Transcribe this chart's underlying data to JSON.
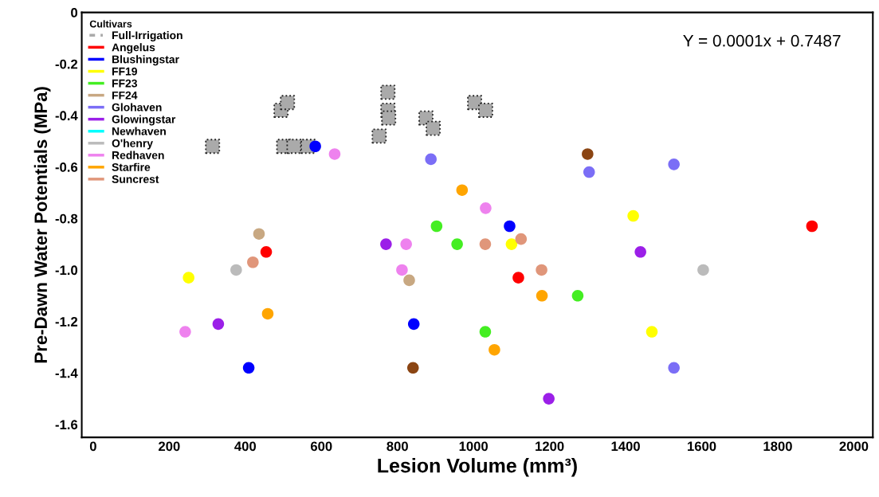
{
  "chart_data": {
    "type": "scatter",
    "xlabel": "Lesion Volume (mm³)",
    "ylabel": "Pre-Dawn Water Potentials (MPa)",
    "legend_title": "Cultivars",
    "xlim": [
      -30,
      2050
    ],
    "xticks": [
      0,
      200,
      400,
      600,
      800,
      1000,
      1200,
      1400,
      1600,
      1800,
      2000
    ],
    "ylim": [
      -1.65,
      0
    ],
    "yticks": [
      0,
      -0.2,
      -0.4,
      -0.6,
      -0.8,
      {
        "value": -1.0,
        "label": "-1.0"
      },
      -1.2,
      -1.4,
      -1.6
    ],
    "grid": false,
    "legend": "top left",
    "annotations": [
      "Y = 0.0001x + 0.7487"
    ],
    "series": [
      {
        "name": "Full-Irrigation",
        "color": "#aaaaaa",
        "marker": "square",
        "line_style": "dashed",
        "x": [
          314,
          494,
          511,
          501,
          528,
          565,
          775,
          775,
          777,
          752,
          875,
          894,
          1003,
          1032
        ],
        "values": [
          -0.52,
          -0.38,
          -0.35,
          -0.52,
          -0.52,
          -0.52,
          -0.31,
          -0.38,
          -0.41,
          -0.48,
          -0.41,
          -0.45,
          -0.35,
          -0.38
        ]
      },
      {
        "name": "Angelus",
        "color": "#ff0000",
        "marker": "circle",
        "x": [
          455,
          1118,
          1890
        ],
        "values": [
          -0.93,
          -1.03,
          -0.83
        ]
      },
      {
        "name": "Blushingstar",
        "color": "#0000ff",
        "marker": "circle",
        "x": [
          584,
          1095,
          843,
          409
        ],
        "values": [
          -0.52,
          -0.83,
          -1.21,
          -1.38
        ]
      },
      {
        "name": "FF19",
        "color": "#ffff00",
        "marker": "circle",
        "x": [
          251,
          1100,
          1420,
          1469
        ],
        "values": [
          -1.03,
          -0.9,
          -0.79,
          -1.24
        ]
      },
      {
        "name": "FF23",
        "color": "#44ee22",
        "marker": "circle",
        "x": [
          903,
          957,
          1274,
          1031
        ],
        "values": [
          -0.83,
          -0.9,
          -1.1,
          -1.24
        ]
      },
      {
        "name": "FF24",
        "color": "#c8a882",
        "marker": "circle",
        "x": [
          436,
          831
        ],
        "values": [
          -0.86,
          -1.04
        ]
      },
      {
        "name": "Glohaven",
        "color": "#7b6ef6",
        "marker": "circle",
        "x": [
          888,
          1304,
          1527,
          1527
        ],
        "values": [
          -0.57,
          -0.62,
          -0.59,
          -1.38
        ]
      },
      {
        "name": "Glowingstar",
        "color": "#9b1fe8",
        "marker": "circle",
        "x": [
          770,
          1439,
          329,
          1198
        ],
        "values": [
          -0.9,
          -0.93,
          -1.21,
          -1.5
        ]
      },
      {
        "name": "Newhaven",
        "color": "#00ffff",
        "marker": "circle"
      },
      {
        "name": "O'henry",
        "color": "#bbbbbb",
        "marker": "circle",
        "x": [
          376,
          1604
        ],
        "values": [
          -1.0,
          -1.0
        ]
      },
      {
        "name": "Redhaven",
        "color": "#ee82ee",
        "marker": "circle",
        "x": [
          635,
          823,
          1032,
          812,
          242
        ],
        "values": [
          -0.55,
          -0.9,
          -0.76,
          -1.0,
          -1.24
        ]
      },
      {
        "name": "Starfire",
        "color": "#ffa500",
        "marker": "circle",
        "x": [
          970,
          459,
          1180,
          1055
        ],
        "values": [
          -0.69,
          -1.17,
          -1.1,
          -1.31
        ]
      },
      {
        "name": "Suncrest",
        "color": "#e0967a",
        "marker": "circle",
        "x": [
          1031,
          1125,
          420,
          1179
        ],
        "values": [
          -0.9,
          -0.88,
          -0.97,
          -1.0
        ]
      },
      {
        "color": "#8b4513",
        "marker": "circle",
        "x": [
          1300,
          841
        ],
        "values": [
          -0.55,
          -1.38
        ]
      }
    ]
  }
}
